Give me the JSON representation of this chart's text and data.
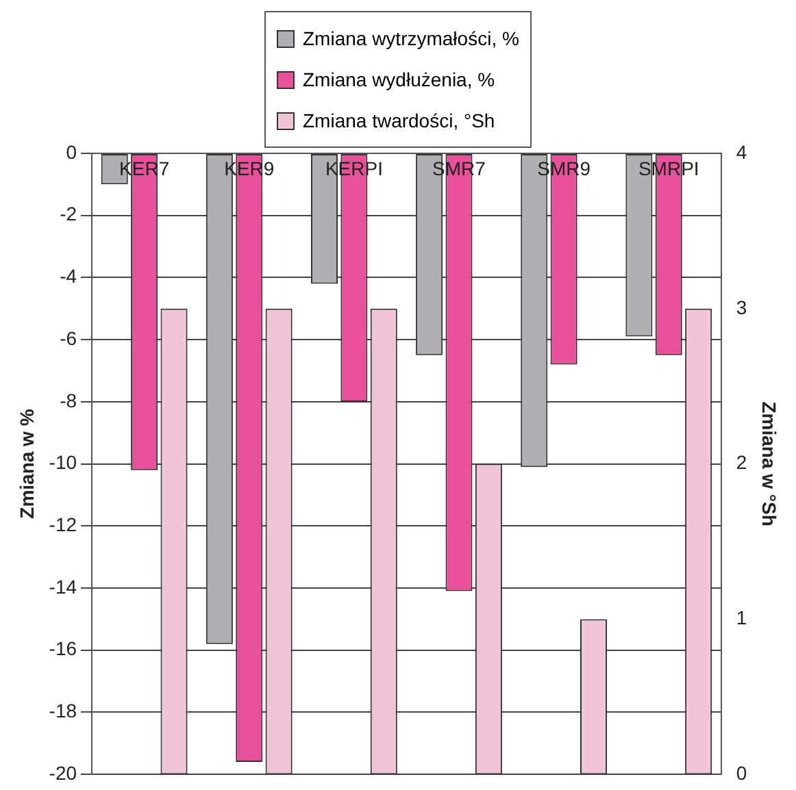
{
  "chart_data": {
    "type": "bar",
    "categories": [
      "KER7",
      "KER9",
      "KERPI",
      "SMR7",
      "SMR9",
      "SMRPI"
    ],
    "series": [
      {
        "name": "Zmiana wytrzymałości, %",
        "color": "#b0b0b4",
        "values": [
          -1.0,
          -15.8,
          -4.2,
          -6.5,
          -10.1,
          -5.9
        ]
      },
      {
        "name": "Zmiana wydłużenia, %",
        "color": "#e8509a",
        "values": [
          -10.2,
          -19.6,
          -8.0,
          -14.1,
          -6.8,
          -6.5
        ]
      },
      {
        "name": "Zmiana twardości,  °Sh",
        "color": "#f2c4da",
        "values": [
          3,
          3,
          3,
          2,
          1,
          3
        ],
        "axis": "y2"
      }
    ],
    "ylabel": "Zmiana w %",
    "y2label": "Zmiana w °Sh",
    "ylim": [
      -20,
      0
    ],
    "yticks": [
      -20,
      -18,
      -16,
      -14,
      -12,
      -10,
      -8,
      -6,
      -4,
      -2,
      0
    ],
    "y2lim": [
      0,
      4
    ],
    "y2ticks": [
      0,
      1,
      2,
      3,
      4
    ],
    "grid": "y",
    "legend": "top"
  }
}
